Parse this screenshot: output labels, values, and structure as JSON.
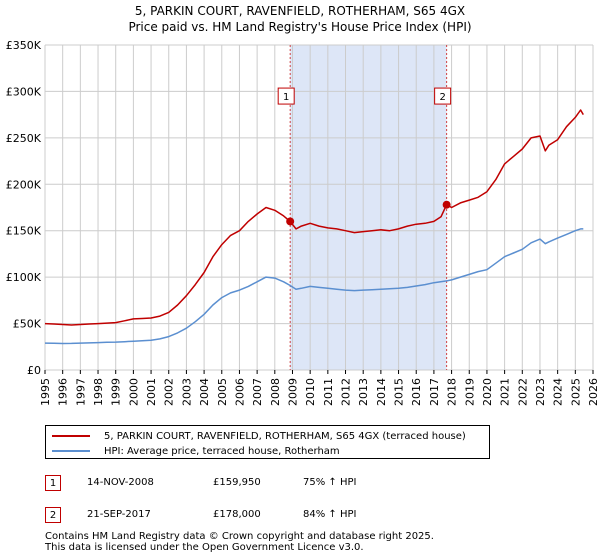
{
  "chart_data": {
    "type": "line",
    "title": "5, PARKIN COURT, RAVENFIELD, ROTHERHAM, S65 4GX",
    "subtitle": "Price paid vs. HM Land Registry's House Price Index (HPI)",
    "xlim": [
      1995,
      2026
    ],
    "ylim": [
      0,
      350000
    ],
    "x_ticks": [
      "1995",
      "1996",
      "1997",
      "1998",
      "1999",
      "2000",
      "2001",
      "2002",
      "2003",
      "2004",
      "2005",
      "2006",
      "2007",
      "2008",
      "2009",
      "2010",
      "2011",
      "2012",
      "2013",
      "2014",
      "2015",
      "2016",
      "2017",
      "2018",
      "2019",
      "2020",
      "2021",
      "2022",
      "2023",
      "2024",
      "2025",
      "2026"
    ],
    "y_ticks": [
      {
        "value": 0,
        "label": "£0"
      },
      {
        "value": 50000,
        "label": "£50K"
      },
      {
        "value": 100000,
        "label": "£100K"
      },
      {
        "value": 150000,
        "label": "£150K"
      },
      {
        "value": 200000,
        "label": "£200K"
      },
      {
        "value": 250000,
        "label": "£250K"
      },
      {
        "value": 300000,
        "label": "£300K"
      },
      {
        "value": 350000,
        "label": "£350K"
      }
    ],
    "grid": true,
    "shaded_region": {
      "from": 2008.87,
      "to": 2017.72,
      "color": "#dde6f7"
    },
    "series": [
      {
        "name": "5, PARKIN COURT, RAVENFIELD, ROTHERHAM, S65 4GX (terraced house)",
        "color": "#c00000",
        "points": [
          [
            1995.0,
            50000
          ],
          [
            1995.5,
            49500
          ],
          [
            1996.0,
            49000
          ],
          [
            1996.5,
            48500
          ],
          [
            1997.0,
            49000
          ],
          [
            1997.5,
            49500
          ],
          [
            1998.0,
            50000
          ],
          [
            1998.5,
            50500
          ],
          [
            1999.0,
            51000
          ],
          [
            1999.5,
            53000
          ],
          [
            2000.0,
            55000
          ],
          [
            2000.5,
            55500
          ],
          [
            2001.0,
            56000
          ],
          [
            2001.5,
            58000
          ],
          [
            2002.0,
            62000
          ],
          [
            2002.5,
            70000
          ],
          [
            2003.0,
            80000
          ],
          [
            2003.5,
            92000
          ],
          [
            2004.0,
            105000
          ],
          [
            2004.5,
            122000
          ],
          [
            2005.0,
            135000
          ],
          [
            2005.5,
            145000
          ],
          [
            2006.0,
            150000
          ],
          [
            2006.5,
            160000
          ],
          [
            2007.0,
            168000
          ],
          [
            2007.5,
            175000
          ],
          [
            2008.0,
            172000
          ],
          [
            2008.5,
            166000
          ],
          [
            2008.87,
            159950
          ],
          [
            2009.2,
            152000
          ],
          [
            2009.5,
            155000
          ],
          [
            2010.0,
            158000
          ],
          [
            2010.5,
            155000
          ],
          [
            2011.0,
            153000
          ],
          [
            2011.5,
            152000
          ],
          [
            2012.0,
            150000
          ],
          [
            2012.5,
            148000
          ],
          [
            2013.0,
            149000
          ],
          [
            2013.5,
            150000
          ],
          [
            2014.0,
            151000
          ],
          [
            2014.5,
            150000
          ],
          [
            2015.0,
            152000
          ],
          [
            2015.5,
            155000
          ],
          [
            2016.0,
            157000
          ],
          [
            2016.5,
            158000
          ],
          [
            2017.0,
            160000
          ],
          [
            2017.4,
            165000
          ],
          [
            2017.72,
            178000
          ],
          [
            2018.0,
            175000
          ],
          [
            2018.5,
            180000
          ],
          [
            2019.0,
            183000
          ],
          [
            2019.5,
            186000
          ],
          [
            2020.0,
            192000
          ],
          [
            2020.5,
            205000
          ],
          [
            2021.0,
            222000
          ],
          [
            2021.5,
            230000
          ],
          [
            2022.0,
            238000
          ],
          [
            2022.5,
            250000
          ],
          [
            2023.0,
            252000
          ],
          [
            2023.3,
            236000
          ],
          [
            2023.5,
            242000
          ],
          [
            2024.0,
            248000
          ],
          [
            2024.5,
            262000
          ],
          [
            2025.0,
            272000
          ],
          [
            2025.3,
            280000
          ],
          [
            2025.45,
            275000
          ]
        ]
      },
      {
        "name": "HPI: Average price, terraced house, Rotherham",
        "color": "#5b8fd0",
        "points": [
          [
            1995.0,
            29000
          ],
          [
            1995.5,
            28800
          ],
          [
            1996.0,
            28500
          ],
          [
            1996.5,
            28700
          ],
          [
            1997.0,
            29000
          ],
          [
            1997.5,
            29200
          ],
          [
            1998.0,
            29500
          ],
          [
            1998.5,
            29800
          ],
          [
            1999.0,
            30000
          ],
          [
            1999.5,
            30500
          ],
          [
            2000.0,
            31000
          ],
          [
            2000.5,
            31500
          ],
          [
            2001.0,
            32000
          ],
          [
            2001.5,
            33500
          ],
          [
            2002.0,
            36000
          ],
          [
            2002.5,
            40000
          ],
          [
            2003.0,
            45000
          ],
          [
            2003.5,
            52000
          ],
          [
            2004.0,
            60000
          ],
          [
            2004.5,
            70000
          ],
          [
            2005.0,
            78000
          ],
          [
            2005.5,
            83000
          ],
          [
            2006.0,
            86000
          ],
          [
            2006.5,
            90000
          ],
          [
            2007.0,
            95000
          ],
          [
            2007.5,
            100000
          ],
          [
            2008.0,
            99000
          ],
          [
            2008.5,
            95000
          ],
          [
            2008.87,
            91000
          ],
          [
            2009.2,
            87000
          ],
          [
            2009.5,
            88000
          ],
          [
            2010.0,
            90000
          ],
          [
            2010.5,
            89000
          ],
          [
            2011.0,
            88000
          ],
          [
            2011.5,
            87000
          ],
          [
            2012.0,
            86000
          ],
          [
            2012.5,
            85500
          ],
          [
            2013.0,
            86000
          ],
          [
            2013.5,
            86500
          ],
          [
            2014.0,
            87000
          ],
          [
            2014.5,
            87500
          ],
          [
            2015.0,
            88000
          ],
          [
            2015.5,
            89000
          ],
          [
            2016.0,
            90500
          ],
          [
            2016.5,
            92000
          ],
          [
            2017.0,
            94000
          ],
          [
            2017.72,
            96000
          ],
          [
            2018.0,
            97000
          ],
          [
            2018.5,
            100000
          ],
          [
            2019.0,
            103000
          ],
          [
            2019.5,
            106000
          ],
          [
            2020.0,
            108000
          ],
          [
            2020.5,
            115000
          ],
          [
            2021.0,
            122000
          ],
          [
            2021.5,
            126000
          ],
          [
            2022.0,
            130000
          ],
          [
            2022.5,
            137000
          ],
          [
            2023.0,
            141000
          ],
          [
            2023.3,
            136000
          ],
          [
            2023.5,
            138000
          ],
          [
            2024.0,
            142000
          ],
          [
            2024.5,
            146000
          ],
          [
            2025.0,
            150000
          ],
          [
            2025.3,
            152000
          ],
          [
            2025.45,
            152000
          ]
        ]
      }
    ],
    "markers": [
      {
        "label": "1",
        "x": 2008.87,
        "y": 159950,
        "box_y": 295000
      },
      {
        "label": "2",
        "x": 2017.72,
        "y": 178000,
        "box_y": 295000
      }
    ],
    "legend_position": "below"
  },
  "legend": {
    "property_label": "5, PARKIN COURT, RAVENFIELD, ROTHERHAM, S65 4GX (terraced house)",
    "hpi_label": "HPI: Average price, terraced house, Rotherham"
  },
  "sales": [
    {
      "num": "1",
      "date": "14-NOV-2008",
      "price": "£159,950",
      "hpi": "75% ↑ HPI"
    },
    {
      "num": "2",
      "date": "21-SEP-2017",
      "price": "£178,000",
      "hpi": "84% ↑ HPI"
    }
  ],
  "footer": {
    "line1": "Contains HM Land Registry data © Crown copyright and database right 2025.",
    "line2": "This data is licensed under the Open Government Licence v3.0."
  },
  "colors": {
    "property": "#c00000",
    "hpi": "#5b8fd0",
    "shade": "#dde6f7",
    "grid": "#cccccc"
  }
}
